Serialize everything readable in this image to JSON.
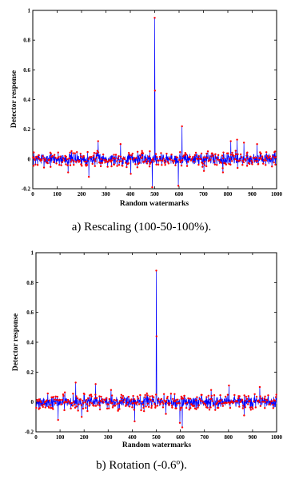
{
  "chart_data": [
    {
      "type": "line",
      "caption": "a) Rescaling (100-50-100%).",
      "xlabel": "Random watermarks",
      "ylabel": "Detector response",
      "xlim": [
        0,
        1000
      ],
      "ylim": [
        -0.2,
        1
      ],
      "xticks": [
        "0",
        "100",
        "200",
        "300",
        "400",
        "500",
        "600",
        "700",
        "800",
        "900",
        "1000"
      ],
      "yticks": [
        "-0.2",
        "0",
        "0.2",
        "0.4",
        "0.6",
        "0.8",
        "1"
      ],
      "line_color": "#0000ff",
      "marker_color": "#ff0000",
      "series": [
        {
          "x_range": [
            1,
            1000
          ],
          "noise_amplitude": 0.05,
          "noise_seed": 7,
          "peaks": [
            {
              "x": 500,
              "y": 0.95
            },
            {
              "x": 501,
              "y": 0.46
            },
            {
              "x": 612,
              "y": 0.22
            },
            {
              "x": 597,
              "y": -0.18
            },
            {
              "x": 490,
              "y": -0.19
            },
            {
              "x": 268,
              "y": 0.12
            },
            {
              "x": 360,
              "y": 0.1
            },
            {
              "x": 145,
              "y": -0.09
            },
            {
              "x": 230,
              "y": -0.12
            },
            {
              "x": 812,
              "y": 0.12
            },
            {
              "x": 838,
              "y": 0.13
            },
            {
              "x": 402,
              "y": -0.1
            },
            {
              "x": 780,
              "y": -0.09
            },
            {
              "x": 866,
              "y": 0.11
            },
            {
              "x": 920,
              "y": 0.1
            },
            {
              "x": 702,
              "y": -0.08
            }
          ]
        }
      ]
    },
    {
      "type": "line",
      "caption": "b) Rotation (-0.6º).",
      "xlabel": "Random watermarks",
      "ylabel": "Detector response",
      "xlim": [
        0,
        1000
      ],
      "ylim": [
        -0.2,
        1
      ],
      "xticks": [
        "0",
        "100",
        "200",
        "300",
        "400",
        "500",
        "600",
        "700",
        "800",
        "900",
        "1000"
      ],
      "yticks": [
        "-0.2",
        "0",
        "0.2",
        "0.4",
        "0.6",
        "0.8",
        "1"
      ],
      "line_color": "#0000ff",
      "marker_color": "#ff0000",
      "series": [
        {
          "x_range": [
            1,
            1000
          ],
          "noise_amplitude": 0.05,
          "noise_seed": 21,
          "peaks": [
            {
              "x": 500,
              "y": 0.88
            },
            {
              "x": 501,
              "y": 0.44
            },
            {
              "x": 165,
              "y": 0.13
            },
            {
              "x": 248,
              "y": 0.12
            },
            {
              "x": 410,
              "y": -0.13
            },
            {
              "x": 598,
              "y": -0.14
            },
            {
              "x": 608,
              "y": -0.17
            },
            {
              "x": 92,
              "y": -0.12
            },
            {
              "x": 190,
              "y": -0.1
            },
            {
              "x": 802,
              "y": 0.11
            },
            {
              "x": 930,
              "y": 0.1
            },
            {
              "x": 312,
              "y": 0.08
            },
            {
              "x": 540,
              "y": -0.08
            },
            {
              "x": 728,
              "y": 0.08
            },
            {
              "x": 865,
              "y": -0.09
            }
          ]
        }
      ]
    }
  ]
}
